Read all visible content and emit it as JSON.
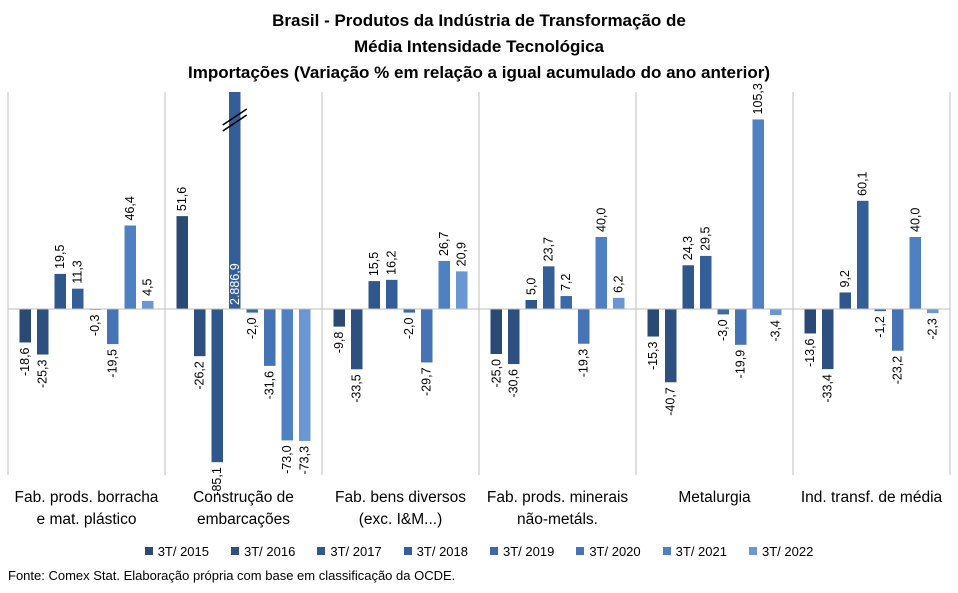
{
  "title_lines": [
    "Brasil - Produtos da Indústria de Transformação de",
    "Média Intensidade Tecnológica",
    "Importações (Variação % em relação a igual acumulado do ano anterior)"
  ],
  "source": "Fonte: Comex Stat. Elaboração própria com base em classificação da OCDE.",
  "chart_data": {
    "type": "bar",
    "categories": [
      [
        "Fab. prods. borracha",
        "e mat. plástico"
      ],
      [
        "Construção de",
        "embarcações"
      ],
      [
        "Fab. bens diversos",
        "(exc. I&M...)"
      ],
      [
        "Fab. prods. minerais",
        "não-metáls."
      ],
      [
        "Metalurgia"
      ],
      [
        "Ind. transf. de média"
      ]
    ],
    "series": [
      {
        "name": "3T/ 2015",
        "color": "#2a4a74",
        "values": [
          -18.6,
          51.6,
          -9.8,
          -25.0,
          -15.3,
          -13.6
        ]
      },
      {
        "name": "3T/ 2016",
        "color": "#2d5080",
        "values": [
          -25.3,
          -26.2,
          -33.5,
          -30.6,
          -40.7,
          -33.4
        ]
      },
      {
        "name": "3T/ 2017",
        "color": "#30578b",
        "values": [
          19.5,
          -85.1,
          15.5,
          5.0,
          24.3,
          9.2
        ]
      },
      {
        "name": "3T/ 2018",
        "color": "#345e97",
        "values": [
          11.3,
          2886.9,
          16.2,
          23.7,
          29.5,
          60.1
        ]
      },
      {
        "name": "3T/ 2019",
        "color": "#3b68a6",
        "values": [
          -0.3,
          -2.0,
          -2.0,
          7.2,
          -3.0,
          -1.2
        ]
      },
      {
        "name": "3T/ 2020",
        "color": "#4573b4",
        "values": [
          -19.5,
          -31.6,
          -29.7,
          -19.3,
          -19.9,
          -23.2
        ]
      },
      {
        "name": "3T/ 2021",
        "color": "#4f80c2",
        "values": [
          46.4,
          -73.0,
          26.7,
          40.0,
          105.3,
          40.0
        ]
      },
      {
        "name": "3T/ 2022",
        "color": "#6a96d2",
        "values": [
          4.5,
          -73.3,
          20.9,
          6.2,
          -3.4,
          -2.3
        ]
      }
    ],
    "value_labels": [
      [
        "-18,6",
        "-25,3",
        "19,5",
        "11,3",
        "-0,3",
        "-19,5",
        "46,4",
        "4,5"
      ],
      [
        "51,6",
        "-26,2",
        "-85,1",
        "2.886,9",
        "-2,0",
        "-31,6",
        "-73,0",
        "-73,3"
      ],
      [
        "-9,8",
        "-33,5",
        "15,5",
        "16,2",
        "-2,0",
        "-29,7",
        "26,7",
        "20,9"
      ],
      [
        "-25,0",
        "-30,6",
        "5,0",
        "23,7",
        "7,2",
        "-19,3",
        "40,0",
        "6,2"
      ],
      [
        "-15,3",
        "-40,7",
        "24,3",
        "29,5",
        "-3,0",
        "-19,9",
        "105,3",
        "-3,4"
      ],
      [
        "-13,6",
        "-33,4",
        "9,2",
        "60,1",
        "-1,2",
        "-23,2",
        "40,0",
        "-2,3"
      ]
    ],
    "axis_break": {
      "group": 1,
      "series": 3
    },
    "ylim_visible": [
      -85.1,
      115
    ],
    "legend_position": "bottom",
    "grid": false
  }
}
